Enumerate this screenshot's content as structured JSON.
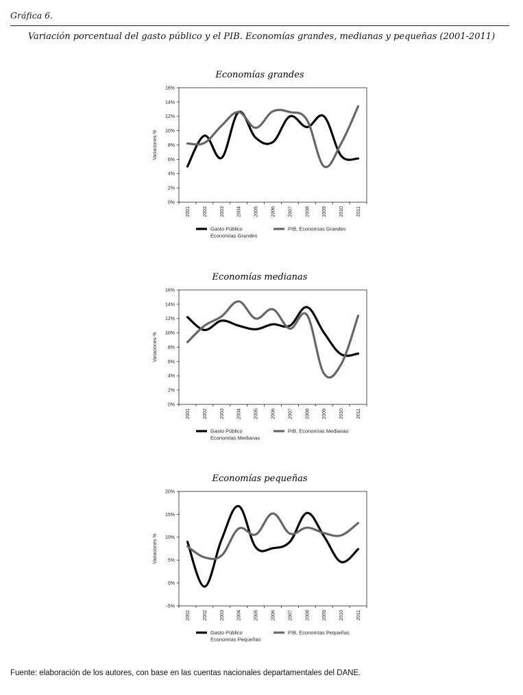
{
  "header": {
    "label": "Gráfica 6.",
    "title": "Variación porcentual del gasto público y el PIB. Economías grandes, medianas y pequeñas (2001-2011)"
  },
  "footer": {
    "source": "Fuente: elaboración de los autores, con base en las cuentas nacionales departamentales del DANE."
  },
  "colors": {
    "gasto": "#000000",
    "pib": "#666666"
  },
  "chart_data": [
    {
      "type": "line",
      "title": "Economías grandes",
      "ylabel": "Variaciones %",
      "xlabel": "",
      "ylim": [
        0,
        16
      ],
      "yticks": [
        0,
        2,
        4,
        6,
        8,
        10,
        12,
        14,
        16
      ],
      "ytick_labels": [
        "0%",
        "2%",
        "4%",
        "6%",
        "8%",
        "10%",
        "12%",
        "14%",
        "16%"
      ],
      "x": [
        "2001",
        "2002",
        "2003",
        "2004",
        "2005",
        "2006",
        "2007",
        "2008",
        "2009",
        "2010",
        "2011"
      ],
      "grid": false,
      "legend_position": "bottom",
      "series": [
        {
          "name": "Gasto Público Economías Grandes",
          "legend_lines": [
            "Gasto Público",
            "Economías Grandes"
          ],
          "values": [
            5.0,
            9.3,
            6.2,
            12.6,
            9.0,
            8.4,
            12.0,
            10.5,
            12.0,
            6.5,
            6.1
          ]
        },
        {
          "name": "PIB, Economías Grandes",
          "legend_lines": [
            "PIB, Economías Grandes"
          ],
          "values": [
            8.2,
            8.3,
            10.7,
            12.6,
            10.4,
            12.7,
            12.6,
            11.5,
            5.0,
            8.2,
            13.4
          ]
        }
      ]
    },
    {
      "type": "line",
      "title": "Economías medianas",
      "ylabel": "Variaciones %",
      "xlabel": "",
      "ylim": [
        0,
        16
      ],
      "yticks": [
        0,
        2,
        4,
        6,
        8,
        10,
        12,
        14,
        16
      ],
      "ytick_labels": [
        "0%",
        "2%",
        "4%",
        "6%",
        "8%",
        "10%",
        "12%",
        "14%",
        "16%"
      ],
      "x": [
        "2001",
        "2002",
        "2003",
        "2004",
        "2005",
        "2006",
        "2007",
        "2008",
        "2009",
        "2010",
        "2011"
      ],
      "grid": false,
      "legend_position": "bottom",
      "series": [
        {
          "name": "Gasto Público Economías Medianas",
          "legend_lines": [
            "Gasto Público",
            "Economías Medianas"
          ],
          "values": [
            12.2,
            10.4,
            11.7,
            11.0,
            10.5,
            11.2,
            11.0,
            13.6,
            10.0,
            7.0,
            7.1
          ]
        },
        {
          "name": "PIB, Economías Medianas",
          "legend_lines": [
            "PIB, Economías Medianas"
          ],
          "values": [
            8.7,
            11.0,
            12.3,
            14.4,
            12.0,
            13.3,
            10.6,
            12.5,
            4.3,
            5.6,
            12.4
          ]
        }
      ]
    },
    {
      "type": "line",
      "title": "Economías pequeñas",
      "ylabel": "Variaciones %",
      "xlabel": "",
      "ylim": [
        -5,
        20
      ],
      "yticks": [
        -5,
        0,
        5,
        10,
        15,
        20
      ],
      "ytick_labels": [
        "-5%",
        "0%",
        "5%",
        "10%",
        "15%",
        "20%"
      ],
      "x": [
        "2001",
        "2002",
        "2003",
        "2004",
        "2005",
        "2006",
        "2007",
        "2008",
        "2009",
        "2010",
        "2011"
      ],
      "grid": false,
      "legend_position": "bottom",
      "series": [
        {
          "name": "Gasto Público Economías Pequeñas",
          "legend_lines": [
            "Gasto Público",
            "Economías Pequeñas"
          ],
          "values": [
            9.0,
            -0.8,
            9.5,
            16.8,
            7.8,
            7.6,
            9.0,
            15.3,
            10.2,
            4.6,
            7.4
          ]
        },
        {
          "name": "PIB, Economías Pequeñas",
          "legend_lines": [
            "PIB, Economías Pequeñas"
          ],
          "values": [
            8.0,
            5.6,
            6.0,
            11.9,
            10.6,
            15.2,
            10.8,
            12.1,
            10.9,
            10.4,
            13.1
          ]
        }
      ]
    }
  ]
}
